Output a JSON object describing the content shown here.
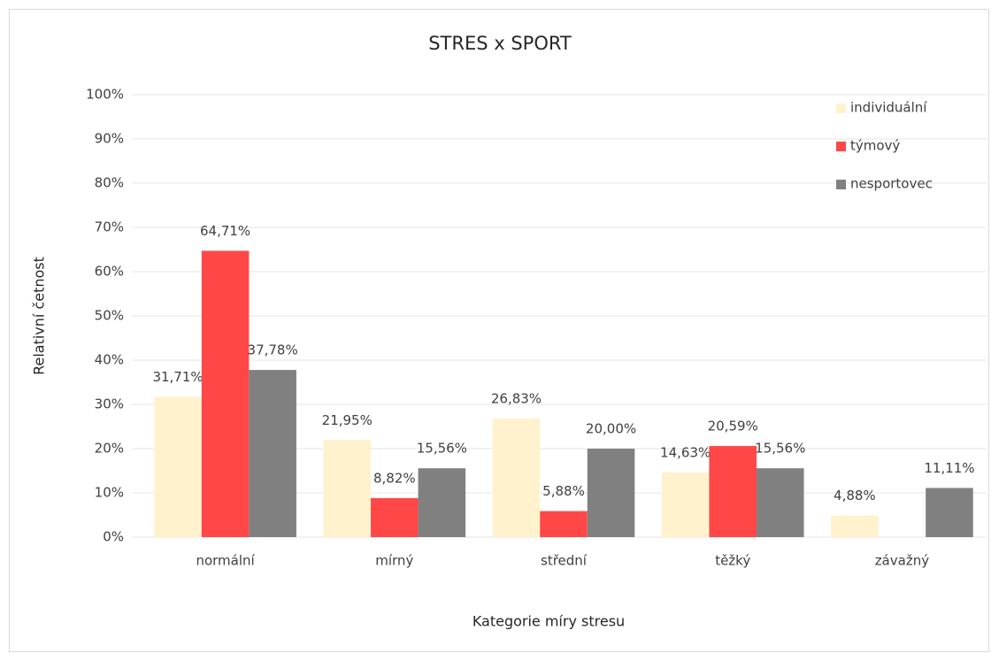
{
  "chart_data": {
    "type": "bar",
    "title": "STRES x SPORT",
    "x_label": "Kategorie míry stresu",
    "y_label": "Relativní četnost",
    "categories": [
      "normální",
      "mírný",
      "střední",
      "těžký",
      "závažný"
    ],
    "series": [
      {
        "name": "individuální",
        "color": "#fff2cc",
        "values": [
          31.71,
          21.95,
          26.83,
          14.63,
          4.88
        ],
        "value_labels": [
          "31,71%",
          "21,95%",
          "26,83%",
          "14,63%",
          "4,88%"
        ]
      },
      {
        "name": "týmový",
        "color": "#ff4747",
        "values": [
          64.71,
          8.82,
          5.88,
          20.59,
          null
        ],
        "value_labels": [
          "64,71%",
          "8,82%",
          "5,88%",
          "20,59%",
          null
        ]
      },
      {
        "name": "nesportovec",
        "color": "#808080",
        "values": [
          37.78,
          15.56,
          20.0,
          15.56,
          11.11
        ],
        "value_labels": [
          "37,78%",
          "15,56%",
          "20,00%",
          "15,56%",
          "11,11%"
        ]
      }
    ],
    "ylim": [
      0,
      100
    ],
    "yticks": [
      {
        "value": 0,
        "label": "0%"
      },
      {
        "value": 10,
        "label": "10%"
      },
      {
        "value": 20,
        "label": "20%"
      },
      {
        "value": 30,
        "label": "30%"
      },
      {
        "value": 40,
        "label": "40%"
      },
      {
        "value": 50,
        "label": "50%"
      },
      {
        "value": 60,
        "label": "60%"
      },
      {
        "value": 70,
        "label": "70%"
      },
      {
        "value": 80,
        "label": "80%"
      },
      {
        "value": 90,
        "label": "90%"
      },
      {
        "value": 100,
        "label": "100%"
      }
    ],
    "grid": true,
    "legend": "top-right"
  }
}
